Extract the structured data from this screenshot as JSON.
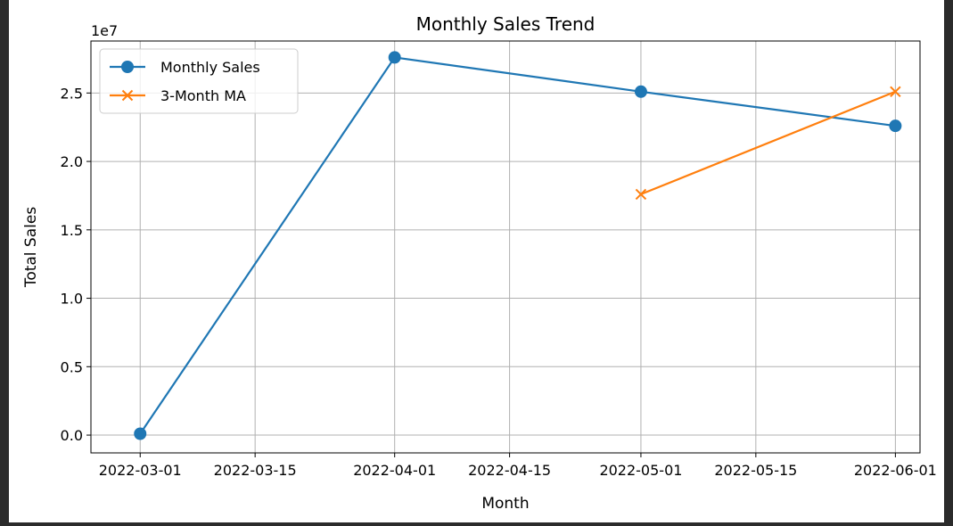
{
  "chart_data": {
    "type": "line",
    "title": "Monthly Sales Trend",
    "xlabel": "Month",
    "ylabel": "Total Sales",
    "y_scale_label": "1e7",
    "x_ticks": [
      "2022-03-01",
      "2022-03-15",
      "2022-04-01",
      "2022-04-15",
      "2022-05-01",
      "2022-05-15",
      "2022-06-01"
    ],
    "y_ticks": [
      0.0,
      0.5,
      1.0,
      1.5,
      2.0,
      2.5
    ],
    "y_tick_labels": [
      "0.0",
      "0.5",
      "1.0",
      "1.5",
      "2.0",
      "2.5"
    ],
    "xlim": [
      "2022-02-23",
      "2022-06-04"
    ],
    "ylim": [
      -0.13,
      2.88
    ],
    "grid": true,
    "legend_position": "upper-left",
    "series": [
      {
        "name": "Monthly Sales",
        "color": "#1f77b4",
        "marker": "circle",
        "points": [
          {
            "x": "2022-03-01",
            "y": 0.01
          },
          {
            "x": "2022-04-01",
            "y": 2.76
          },
          {
            "x": "2022-05-01",
            "y": 2.51
          },
          {
            "x": "2022-06-01",
            "y": 2.26
          }
        ]
      },
      {
        "name": "3-Month MA",
        "color": "#ff7f0e",
        "marker": "x",
        "points": [
          {
            "x": "2022-05-01",
            "y": 1.76
          },
          {
            "x": "2022-06-01",
            "y": 2.51
          }
        ]
      }
    ]
  }
}
